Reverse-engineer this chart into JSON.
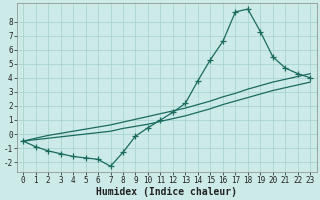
{
  "bg_color": "#cceae8",
  "grid_color": "#aad4d0",
  "line_color": "#1a6b5e",
  "marker": "+",
  "linewidth": 0.9,
  "markersize": 4,
  "markeredgewidth": 0.9,
  "xlabel": "Humidex (Indice chaleur)",
  "xlim": [
    -0.5,
    23.5
  ],
  "ylim": [
    -2.7,
    9.3
  ],
  "xticks": [
    0,
    1,
    2,
    3,
    4,
    5,
    6,
    7,
    8,
    9,
    10,
    11,
    12,
    13,
    14,
    15,
    16,
    17,
    18,
    19,
    20,
    21,
    22,
    23
  ],
  "yticks": [
    -2,
    -1,
    0,
    1,
    2,
    3,
    4,
    5,
    6,
    7,
    8
  ],
  "curve1_x": [
    0,
    1,
    2,
    3,
    4,
    5,
    6,
    7,
    8,
    9,
    10,
    11,
    12,
    13,
    14,
    15,
    16,
    17,
    18,
    19,
    20,
    21,
    22,
    23
  ],
  "curve1_y": [
    -0.5,
    -0.9,
    -1.2,
    -1.4,
    -1.6,
    -1.7,
    -1.8,
    -2.3,
    -1.3,
    -0.15,
    0.45,
    1.0,
    1.55,
    2.2,
    3.8,
    5.3,
    6.6,
    8.7,
    8.9,
    7.3,
    5.5,
    4.7,
    4.3,
    4.0
  ],
  "curve2_x": [
    0,
    1,
    2,
    3,
    4,
    5,
    6,
    7,
    8,
    9,
    10,
    11,
    12,
    13,
    14,
    15,
    16,
    17,
    18,
    19,
    20,
    21,
    22,
    23
  ],
  "curve2_y": [
    -0.5,
    -0.4,
    -0.3,
    -0.2,
    -0.1,
    0.0,
    0.1,
    0.2,
    0.4,
    0.55,
    0.7,
    0.9,
    1.1,
    1.3,
    1.55,
    1.8,
    2.1,
    2.35,
    2.6,
    2.85,
    3.1,
    3.3,
    3.5,
    3.7
  ],
  "curve3_x": [
    0,
    1,
    2,
    3,
    4,
    5,
    6,
    7,
    8,
    9,
    10,
    11,
    12,
    13,
    14,
    15,
    16,
    17,
    18,
    19,
    20,
    21,
    22,
    23
  ],
  "curve3_y": [
    -0.5,
    -0.3,
    -0.1,
    0.05,
    0.2,
    0.35,
    0.5,
    0.65,
    0.85,
    1.05,
    1.25,
    1.45,
    1.65,
    1.85,
    2.1,
    2.35,
    2.65,
    2.9,
    3.2,
    3.45,
    3.7,
    3.9,
    4.1,
    4.3
  ],
  "tick_fontsize": 5.5,
  "label_fontsize": 7.0,
  "label_fontweight": "bold"
}
